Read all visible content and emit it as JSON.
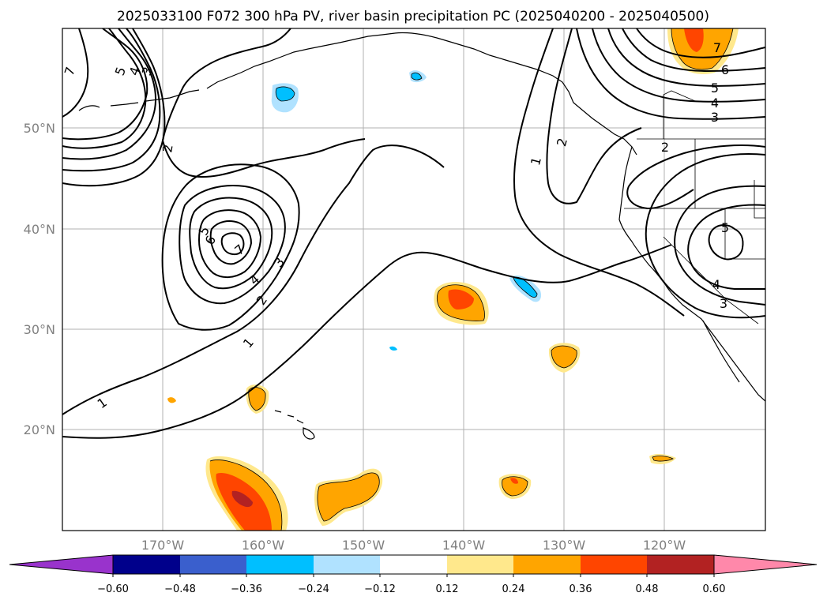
{
  "title": "2025033100 F072 300 hPa PV, river basin precipitation PC (2025040200 - 2025040500)",
  "map": {
    "lon_range": [
      -180,
      -110
    ],
    "lat_range": [
      10,
      60
    ],
    "grid": true,
    "lat_ticks": [
      {
        "lat": 50,
        "label": "50°N"
      },
      {
        "lat": 40,
        "label": "40°N"
      },
      {
        "lat": 30,
        "label": "30°N"
      },
      {
        "lat": 20,
        "label": "20°N"
      }
    ],
    "lon_ticks": [
      {
        "lon": -170,
        "label": "170°W"
      },
      {
        "lon": -160,
        "label": "160°W"
      },
      {
        "lon": -150,
        "label": "150°W"
      },
      {
        "lon": -140,
        "label": "140°W"
      },
      {
        "lon": -130,
        "label": "130°W"
      },
      {
        "lon": -120,
        "label": "120°W"
      }
    ]
  },
  "contour_labels": [
    {
      "text": "7"
    },
    {
      "text": "5"
    },
    {
      "text": "4"
    },
    {
      "text": "3"
    },
    {
      "text": "2"
    },
    {
      "text": "5"
    },
    {
      "text": "6"
    },
    {
      "text": "7"
    },
    {
      "text": "4"
    },
    {
      "text": "3"
    },
    {
      "text": "2"
    },
    {
      "text": "1"
    },
    {
      "text": "1"
    },
    {
      "text": "2"
    },
    {
      "text": "1"
    },
    {
      "text": "7"
    },
    {
      "text": "6"
    },
    {
      "text": "5"
    },
    {
      "text": "4"
    },
    {
      "text": "3"
    },
    {
      "text": "2"
    },
    {
      "text": "5"
    },
    {
      "text": "4"
    },
    {
      "text": "3"
    }
  ],
  "colorbar": {
    "extend": "both",
    "colors": {
      "under": "#9933cc",
      "bins": [
        "#00008b",
        "#3a5fcd",
        "#00bfff",
        "#b0e2ff",
        "#ffffff",
        "#ffe88c",
        "#ffa500",
        "#ff4500",
        "#b22222"
      ],
      "over": "#ff88aa"
    },
    "ticks": [
      "−0.60",
      "−0.48",
      "−0.36",
      "−0.24",
      "−0.12",
      "0.12",
      "0.24",
      "0.36",
      "0.48",
      "0.60"
    ]
  }
}
